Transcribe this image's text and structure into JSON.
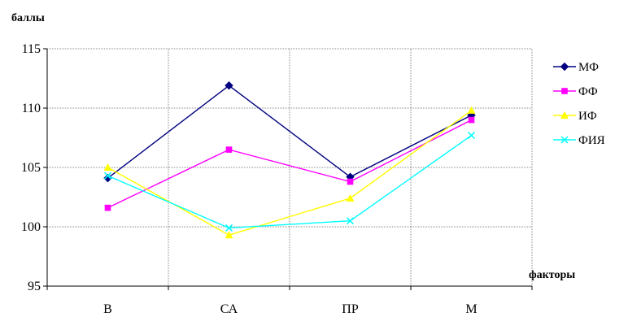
{
  "chart_data": {
    "type": "line",
    "title": "",
    "ylabel": "баллы",
    "xlabel": "факторы",
    "categories": [
      "В",
      "СА",
      "ПР",
      "М"
    ],
    "ylim": [
      95,
      115
    ],
    "yticks": [
      95,
      100,
      105,
      110,
      115
    ],
    "grid": true,
    "legend_position": "right",
    "series": [
      {
        "name": "МФ",
        "values": [
          104.1,
          111.9,
          104.2,
          109.4
        ],
        "color": "#000080",
        "marker": "diamond"
      },
      {
        "name": "ФФ",
        "values": [
          101.6,
          106.5,
          103.8,
          109.0
        ],
        "color": "#ff00ff",
        "marker": "square"
      },
      {
        "name": "ИФ",
        "values": [
          105.0,
          99.3,
          102.4,
          109.8
        ],
        "color": "#ffff00",
        "marker": "triangle"
      },
      {
        "name": "ФИЯ",
        "values": [
          104.3,
          99.9,
          100.5,
          107.7
        ],
        "color": "#00ffff",
        "marker": "x"
      }
    ]
  }
}
